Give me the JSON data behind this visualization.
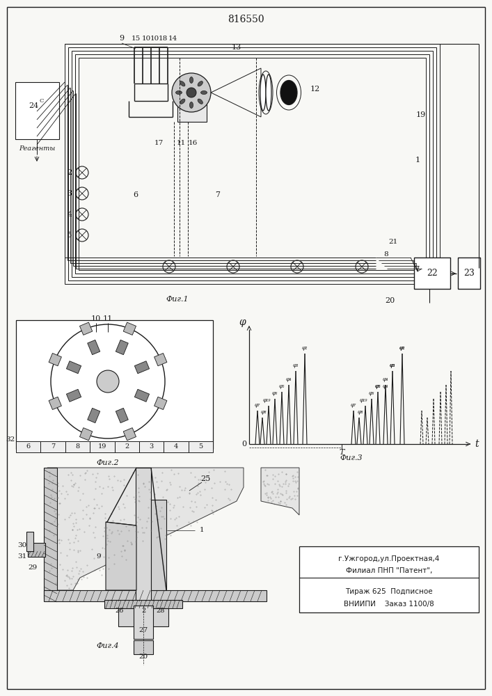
{
  "title": "816550",
  "bg_color": "#f8f8f5",
  "line_color": "#1a1a1a",
  "fig1_label": "Фиг.1",
  "fig2_label": "Фиг.2",
  "fig3_label": "Фиг.3",
  "fig4_label": "Фиг.4",
  "footer": [
    "ВНИИПИ    Заказ 1100/8",
    "Тираж 625  Подписное",
    "Филиал ПНП \"Патент\",",
    "г.Ужгород,ул.Проектная,4"
  ]
}
